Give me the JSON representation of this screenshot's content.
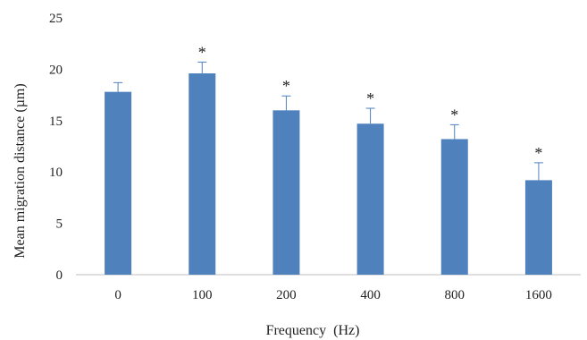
{
  "chart_data": {
    "type": "bar",
    "title": "",
    "xlabel": "Frequency  (Hz)",
    "ylabel": "Mean migration distance (µm)",
    "categories": [
      "0",
      "100",
      "200",
      "400",
      "800",
      "1600"
    ],
    "values": [
      17.8,
      19.6,
      16.0,
      14.7,
      13.2,
      9.2
    ],
    "errors": [
      0.9,
      1.1,
      1.4,
      1.5,
      1.4,
      1.7
    ],
    "significance": [
      "",
      "*",
      "*",
      "*",
      "*",
      "*"
    ],
    "ylim": [
      0,
      25
    ],
    "yticks": [
      "0",
      "5",
      "10",
      "15",
      "20",
      "25"
    ],
    "grid": false,
    "legend": "none",
    "bar_color": "#4f81bd",
    "error_bar_color": "#4f81bd"
  }
}
